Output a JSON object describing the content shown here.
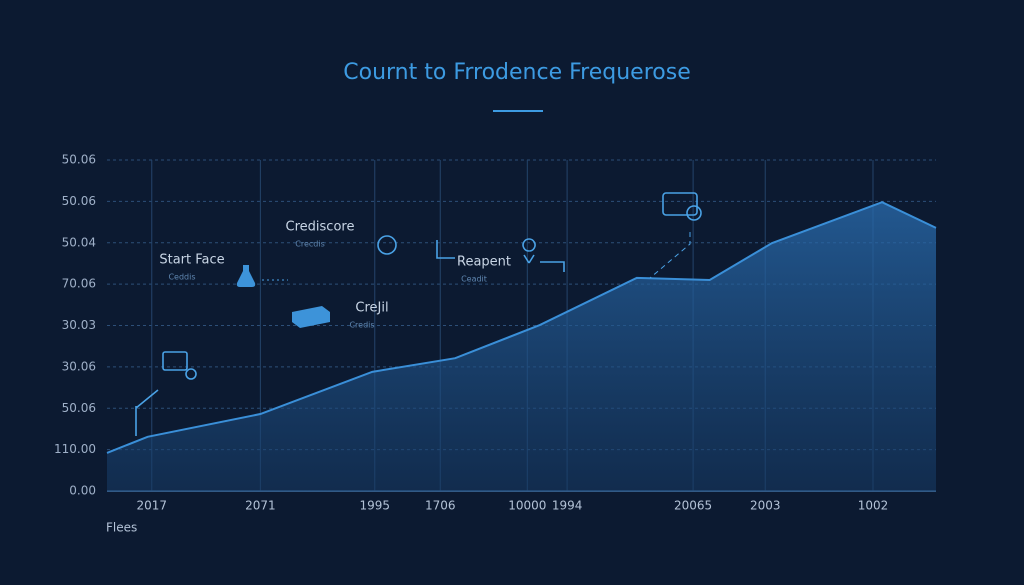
{
  "chart_data": {
    "type": "area",
    "title": "Cournt to Frrodence Frequerose",
    "x_label": "Flees",
    "x": [
      0,
      4.9,
      18.5,
      32.0,
      42.0,
      52.2,
      63.9,
      72.7,
      80.2,
      93.5,
      100
    ],
    "values": [
      0.92,
      1.31,
      1.86,
      2.88,
      3.21,
      4.01,
      5.15,
      5.1,
      5.99,
      6.98,
      6.36
    ],
    "color": "#3a8fd8",
    "xlim": [
      0,
      100
    ],
    "xticks": [
      {
        "value": 5.4,
        "label": "2017"
      },
      {
        "value": 18.5,
        "label": "2071"
      },
      {
        "value": 32.3,
        "label": "1995"
      },
      {
        "value": 40.2,
        "label": "1706"
      },
      {
        "value": 50.7,
        "label": "10000"
      },
      {
        "value": 55.5,
        "label": "1994"
      },
      {
        "value": 70.7,
        "label": "20065"
      },
      {
        "value": 79.4,
        "label": "2003"
      },
      {
        "value": 92.4,
        "label": "1002"
      }
    ],
    "ylim": [
      0,
      8
    ],
    "yticks": [
      {
        "value": 0,
        "label": "0.00"
      },
      {
        "value": 1,
        "label": "110.00"
      },
      {
        "value": 2,
        "label": "50.06"
      },
      {
        "value": 3,
        "label": "30.06"
      },
      {
        "value": 4,
        "label": "30.03"
      },
      {
        "value": 5,
        "label": "70.06"
      },
      {
        "value": 6,
        "label": "50.04"
      },
      {
        "value": 7,
        "label": "50.06"
      },
      {
        "value": 8,
        "label": "50.06"
      }
    ],
    "grid": true,
    "annotations": [
      {
        "text": "Start Face",
        "sub": "Ceddis"
      },
      {
        "text": "Crediscore",
        "sub": "Crecdis"
      },
      {
        "text": "Reapent",
        "sub": "Ceadit"
      },
      {
        "text": "CreJil",
        "sub": "Credis"
      }
    ]
  }
}
